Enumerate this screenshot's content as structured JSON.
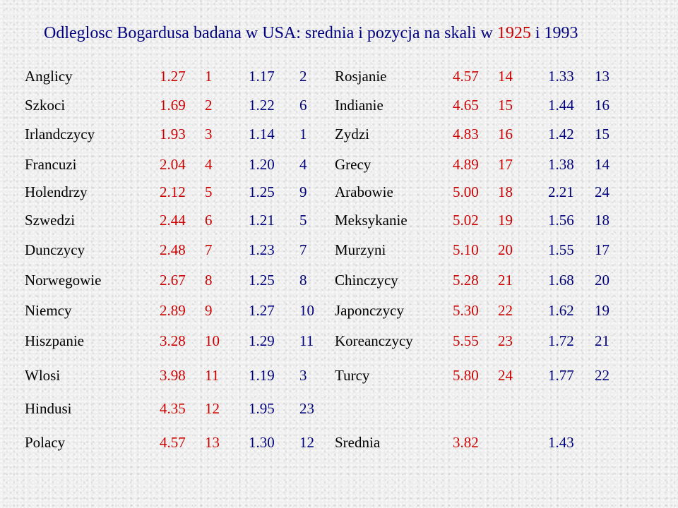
{
  "title": {
    "prefix": "Odleglosc Bogardusa badana w USA: srednia i pozycja na skali w ",
    "year_a": "1925",
    "conj": " i ",
    "year_b": "1993"
  },
  "colors": {
    "title": "#000080",
    "year_1925": "#cc0000",
    "year_1993": "#000080",
    "names": "#000000"
  },
  "rows": [
    {
      "left": {
        "name": "Anglicy",
        "v1925": "1.27",
        "p1925": "1",
        "v1993": "1.17",
        "p1993": "2"
      },
      "right": {
        "name": "Rosjanie",
        "v1925": "4.57",
        "p1925": "14",
        "v1993": "1.33",
        "p1993": "13"
      }
    },
    {
      "left": {
        "name": "Szkoci",
        "v1925": "1.69",
        "p1925": "2",
        "v1993": "1.22",
        "p1993": "6"
      },
      "right": {
        "name": "Indianie",
        "v1925": "4.65",
        "p1925": "15",
        "v1993": "1.44",
        "p1993": "16"
      }
    },
    {
      "left": {
        "name": "Irlandczycy",
        "v1925": "1.93",
        "p1925": "3",
        "v1993": "1.14",
        "p1993": "1"
      },
      "right": {
        "name": "Zydzi",
        "v1925": "4.83",
        "p1925": "16",
        "v1993": "1.42",
        "p1993": "15"
      }
    },
    {
      "left": {
        "name": "Francuzi",
        "v1925": "2.04",
        "p1925": "4",
        "v1993": "1.20",
        "p1993": "4"
      },
      "right": {
        "name": "Grecy",
        "v1925": "4.89",
        "p1925": "17",
        "v1993": "1.38",
        "p1993": "14"
      }
    },
    {
      "left": {
        "name": "Holendrzy",
        "v1925": "2.12",
        "p1925": "5",
        "v1993": "1.25",
        "p1993": "9"
      },
      "right": {
        "name": "Arabowie",
        "v1925": "5.00",
        "p1925": "18",
        "v1993": "2.21",
        "p1993": "24"
      }
    },
    {
      "left": {
        "name": "Szwedzi",
        "v1925": "2.44",
        "p1925": "6",
        "v1993": "1.21",
        "p1993": "5"
      },
      "right": {
        "name": "Meksykanie",
        "v1925": "5.02",
        "p1925": "19",
        "v1993": "1.56",
        "p1993": "18"
      }
    },
    {
      "left": {
        "name": "Dunczycy",
        "v1925": "2.48",
        "p1925": "7",
        "v1993": "1.23",
        "p1993": "7"
      },
      "right": {
        "name": "Murzyni",
        "v1925": "5.10",
        "p1925": "20",
        "v1993": "1.55",
        "p1993": "17"
      }
    },
    {
      "left": {
        "name": "Norwegowie",
        "v1925": "2.67",
        "p1925": "8",
        "v1993": "1.25",
        "p1993": "8"
      },
      "right": {
        "name": "Chinczycy",
        "v1925": "5.28",
        "p1925": "21",
        "v1993": "1.68",
        "p1993": "20"
      }
    },
    {
      "left": {
        "name": "Niemcy",
        "v1925": "2.89",
        "p1925": "9",
        "v1993": "1.27",
        "p1993": "10"
      },
      "right": {
        "name": "Japonczycy",
        "v1925": "5.30",
        "p1925": "22",
        "v1993": "1.62",
        "p1993": "19"
      }
    },
    {
      "left": {
        "name": "Hiszpanie",
        "v1925": "3.28",
        "p1925": "10",
        "v1993": "1.29",
        "p1993": "11"
      },
      "right": {
        "name": "Koreanczycy",
        "v1925": "5.55",
        "p1925": "23",
        "v1993": "1.72",
        "p1993": "21"
      }
    },
    {
      "left": {
        "name": "Wlosi",
        "v1925": "3.98",
        "p1925": "11",
        "v1993": "1.19",
        "p1993": "3"
      },
      "right": {
        "name": "Turcy",
        "v1925": "5.80",
        "p1925": "24",
        "v1993": "1.77",
        "p1993": "22"
      }
    },
    {
      "left": {
        "name": "Hindusi",
        "v1925": "4.35",
        "p1925": "12",
        "v1993": "1.95",
        "p1993": "23"
      },
      "right": {
        "name": "",
        "v1925": "",
        "p1925": "",
        "v1993": "",
        "p1993": ""
      }
    },
    {
      "left": {
        "name": "Polacy",
        "v1925": "4.57",
        "p1925": "13",
        "v1993": "1.30",
        "p1993": "12"
      },
      "right": {
        "name": "Srednia",
        "v1925": "3.82",
        "p1925": "",
        "v1993": "1.43",
        "p1993": ""
      }
    }
  ]
}
